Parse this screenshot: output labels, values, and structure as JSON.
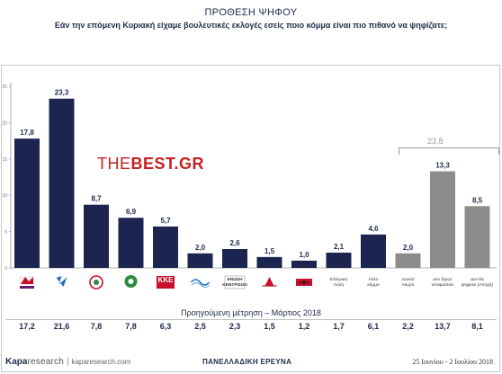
{
  "header": {
    "title": "ΠΡΟΘΕΣΗ ΨΗΦΟΥ",
    "subtitle": "Εάν την επόμενη Κυριακή είχαμε βουλευτικές εκλογές εσείς ποιο κόμμα είναι πιο πιθανό να ψηφίζατε;"
  },
  "watermark": {
    "part1": "THE",
    "part2": "BEST.GR"
  },
  "chart_data": {
    "type": "bar",
    "title": "ΠΡΟΘΕΣΗ ΨΗΦΟΥ",
    "ylim": [
      0,
      25
    ],
    "y_ticks": [
      "0",
      "5",
      "10",
      "15",
      "20",
      "25"
    ],
    "grid": false,
    "categories": [
      "ΣΥΡΙΖΑ",
      "ΝΔ",
      "ΚΙΝΑΛ",
      "Ποτάμι",
      "ΚΚΕ",
      "ΑΝΕΛ",
      "Ένωση Κεντρώων",
      "Λαϊκή Ενότητα",
      "Χρυσή Αυγή",
      "Ελληνική Λύση",
      "Άλλο κόμμα",
      "Λευκό/ Άκυρο",
      "Δεν ξέρω/ αποφασίσει",
      "Δεν θα ψηφίσει (Αποχή)"
    ],
    "category_labels": [
      "",
      "",
      "",
      "",
      "ΚΚΕ",
      "",
      "ΕΝΩΣΗ ΚΕΝΤΡΩΩΝ",
      "",
      "",
      "Ελληνική Λύση",
      "Άλλο κόμμα",
      "Λευκό/ Άκυρο",
      "Δεν ξέρω/ αποφασίσει",
      "Δεν θα ψηφίσει (Αποχή)"
    ],
    "values": [
      17.8,
      23.3,
      8.7,
      6.9,
      5.7,
      2.0,
      2.6,
      1.5,
      1.0,
      2.1,
      4.6,
      2.0,
      13.3,
      8.5
    ],
    "value_labels": [
      "17,8",
      "23,3",
      "8,7",
      "6,9",
      "5,7",
      "2,0",
      "2,6",
      "1,5",
      "1,0",
      "2,1",
      "4,6",
      "2,0",
      "13,3",
      "8,5"
    ],
    "group_total": {
      "label": "23,8",
      "categories": [
        "Λευκό/ Άκυρο",
        "Δεν ξέρω/ αποφασίσει",
        "Δεν θα ψηφίσει (Αποχή)"
      ]
    },
    "previous": {
      "label": "Προηγούμενη μέτρηση – Μάρτιος 2018",
      "values": [
        "17,2",
        "21,6",
        "7,8",
        "7,8",
        "6,3",
        "2,5",
        "2,3",
        "1,5",
        "1,2",
        "1,7",
        "6,1",
        "2,2",
        "13,7",
        "8,1"
      ]
    },
    "colors": {
      "party": "#1b2550",
      "undecided": "#8c8c8c"
    }
  },
  "footer": {
    "brand_k": "Kapa",
    "brand_rest": "research",
    "url": "kaparesearch.com",
    "center": "ΠΑΝΕΛΛΑΔΙΚΗ ΕΡΕΥΝΑ",
    "date": "25 Ιουνίου - 2 Ιουλίου 2018"
  }
}
